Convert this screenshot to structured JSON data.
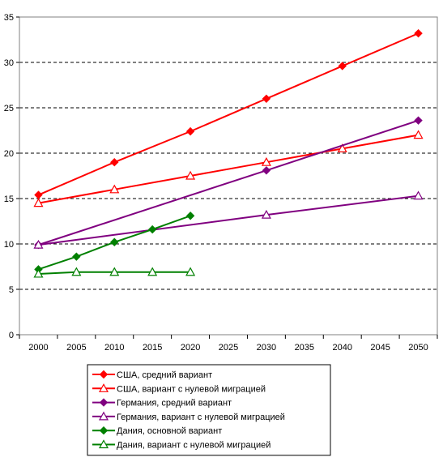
{
  "chart_data": {
    "type": "line",
    "title": "",
    "xlabel": "",
    "ylabel": "",
    "xlim": [
      1997.5,
      2052.5
    ],
    "ylim": [
      0,
      35
    ],
    "grid": "horizontal-dashed",
    "legend_position": "bottom",
    "x_ticks": [
      "2000",
      "2005",
      "2010",
      "2015",
      "2020",
      "2025",
      "2030",
      "2035",
      "2040",
      "2045",
      "2050"
    ],
    "y_ticks": [
      "0",
      "5",
      "10",
      "15",
      "20",
      "25",
      "30",
      "35"
    ],
    "series": [
      {
        "name": "США, средний вариант",
        "color": "#ff0000",
        "marker": "diamond-filled",
        "x": [
          2000,
          2010,
          2020,
          2030,
          2040,
          2050
        ],
        "y": [
          15.4,
          19.0,
          22.4,
          26.0,
          29.6,
          33.2
        ]
      },
      {
        "name": "США,  вариант с нулевой миграцией",
        "color": "#ff0000",
        "marker": "triangle-open",
        "x": [
          2000,
          2010,
          2020,
          2030,
          2040,
          2050
        ],
        "y": [
          14.5,
          16.0,
          17.5,
          19.0,
          20.5,
          22.0
        ]
      },
      {
        "name": "Германия, средний вариант",
        "color": "#800080",
        "marker": "diamond-filled",
        "x": [
          2000,
          2030,
          2050
        ],
        "y": [
          9.9,
          18.1,
          23.6
        ]
      },
      {
        "name": "Германия,  вариант с нулевой миграцией",
        "color": "#800080",
        "marker": "triangle-open",
        "x": [
          2000,
          2030,
          2050
        ],
        "y": [
          9.9,
          13.2,
          15.3
        ]
      },
      {
        "name": "Дания, основной вариант",
        "color": "#008000",
        "marker": "diamond-filled",
        "x": [
          2000,
          2005,
          2010,
          2015,
          2020
        ],
        "y": [
          7.2,
          8.6,
          10.2,
          11.6,
          13.1
        ]
      },
      {
        "name": "Дания,  вариант с нулевой миграцией",
        "color": "#008000",
        "marker": "triangle-open",
        "x": [
          2000,
          2005,
          2010,
          2015,
          2020
        ],
        "y": [
          6.7,
          6.9,
          6.9,
          6.9,
          6.9
        ]
      }
    ]
  }
}
